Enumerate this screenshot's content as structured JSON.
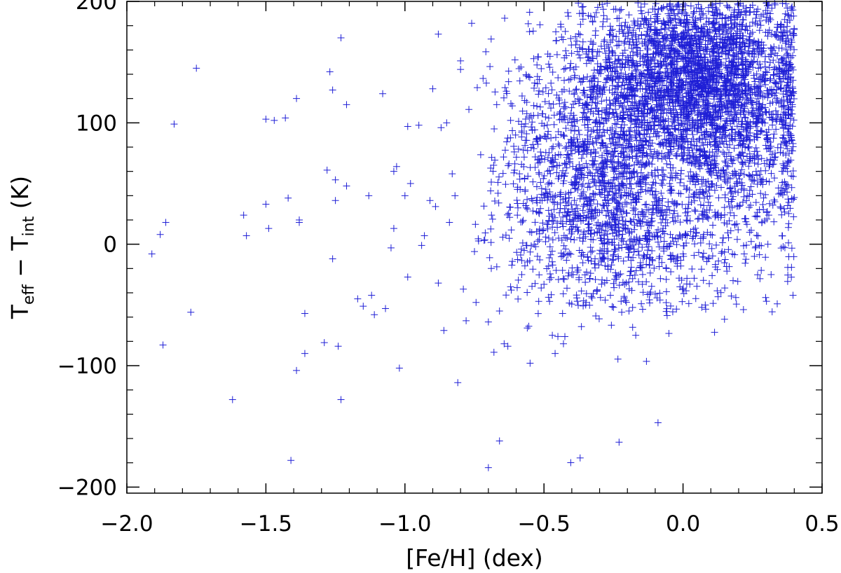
{
  "chart_data": {
    "type": "scatter",
    "xlabel": "[Fe/H] (dex)",
    "ylabel": {
      "prefix": "T",
      "sub1": "eff",
      "minus": " − T",
      "sub2": "int",
      "unit": " (K)"
    },
    "xlim": [
      -2.0,
      0.5
    ],
    "ylim": [
      -205,
      200
    ],
    "xticks": [
      {
        "value": -2.0,
        "label": "−2.0"
      },
      {
        "value": -1.5,
        "label": "−1.5"
      },
      {
        "value": -1.0,
        "label": "−1.0"
      },
      {
        "value": -0.5,
        "label": "−0.5"
      },
      {
        "value": 0.0,
        "label": "0.0"
      },
      {
        "value": 0.5,
        "label": "0.5"
      }
    ],
    "yticks": [
      {
        "value": -200,
        "label": "−200"
      },
      {
        "value": -100,
        "label": "−100"
      },
      {
        "value": 0,
        "label": "0"
      },
      {
        "value": 100,
        "label": "100"
      },
      {
        "value": 200,
        "label": "200"
      }
    ],
    "marker": "+",
    "color": "#1f1fd6",
    "grid": false,
    "legend": "none",
    "outliers": [
      [
        -1.91,
        -8
      ],
      [
        -1.88,
        8
      ],
      [
        -1.86,
        18
      ],
      [
        -1.87,
        -83
      ],
      [
        -1.83,
        99
      ],
      [
        -1.75,
        145
      ],
      [
        -1.77,
        -56
      ],
      [
        -1.62,
        -128
      ],
      [
        -1.58,
        24
      ],
      [
        -1.57,
        7
      ],
      [
        -1.5,
        33
      ],
      [
        -1.49,
        13
      ],
      [
        -1.5,
        103
      ],
      [
        -1.47,
        102
      ],
      [
        -1.43,
        104
      ],
      [
        -1.42,
        38
      ],
      [
        -1.39,
        120
      ],
      [
        -1.38,
        20
      ],
      [
        -1.38,
        18
      ],
      [
        -1.36,
        -57
      ],
      [
        -1.36,
        -90
      ],
      [
        -1.39,
        -104
      ],
      [
        -1.41,
        -178
      ],
      [
        -1.28,
        61
      ],
      [
        -1.27,
        142
      ],
      [
        -1.26,
        127
      ],
      [
        -1.25,
        53
      ],
      [
        -1.25,
        36
      ],
      [
        -1.23,
        170
      ],
      [
        -1.21,
        48
      ],
      [
        -1.21,
        115
      ],
      [
        -1.26,
        -12
      ],
      [
        -1.29,
        -81
      ],
      [
        -1.24,
        -84
      ],
      [
        -1.23,
        -128
      ],
      [
        -1.17,
        -45
      ],
      [
        -1.15,
        -51
      ],
      [
        -1.13,
        40
      ],
      [
        -1.12,
        -42
      ],
      [
        -1.11,
        -58
      ],
      [
        -1.08,
        124
      ],
      [
        -1.07,
        -53
      ],
      [
        -1.05,
        -3
      ],
      [
        -1.04,
        13
      ],
      [
        -1.04,
        60
      ],
      [
        -1.03,
        64
      ],
      [
        -1.02,
        200
      ],
      [
        -1.02,
        -102
      ],
      [
        -1.0,
        40
      ],
      [
        -0.99,
        97
      ],
      [
        -0.99,
        -27
      ],
      [
        -0.98,
        50
      ],
      [
        -0.95,
        98
      ],
      [
        -0.94,
        -1
      ],
      [
        -0.93,
        7
      ],
      [
        -0.91,
        36
      ],
      [
        -0.9,
        128
      ],
      [
        -0.89,
        31
      ],
      [
        -0.88,
        -32
      ],
      [
        -0.88,
        173
      ],
      [
        -0.87,
        96
      ],
      [
        -0.86,
        -71
      ],
      [
        -0.85,
        100
      ],
      [
        -0.84,
        18
      ],
      [
        -0.83,
        58
      ],
      [
        -0.82,
        40
      ],
      [
        -0.81,
        -114
      ],
      [
        -0.8,
        144
      ],
      [
        -0.8,
        151
      ],
      [
        -0.79,
        -37
      ],
      [
        -0.78,
        -63
      ],
      [
        -0.77,
        111
      ],
      [
        -0.76,
        182
      ],
      [
        -0.75,
        -6
      ],
      [
        -0.74,
        129
      ],
      [
        -0.7,
        -64
      ],
      [
        -0.7,
        -184
      ],
      [
        -0.69,
        169
      ],
      [
        -0.68,
        -89
      ],
      [
        -0.67,
        115
      ],
      [
        -0.66,
        -162
      ],
      [
        -0.66,
        -55
      ],
      [
        -0.64,
        129
      ],
      [
        -0.63,
        -84
      ],
      [
        -0.62,
        102
      ],
      [
        -0.62,
        -35
      ],
      [
        -0.58,
        -25
      ],
      [
        -0.56,
        -69
      ],
      [
        -0.55,
        -98
      ],
      [
        -0.53,
        -2
      ],
      [
        -0.51,
        -36
      ],
      [
        -0.5,
        -33
      ],
      [
        -0.47,
        -75
      ],
      [
        -0.46,
        -90
      ],
      [
        -0.45,
        -76
      ],
      [
        -0.43,
        -82
      ],
      [
        -0.4,
        -25
      ],
      [
        -0.38,
        -47
      ],
      [
        -0.37,
        -176
      ],
      [
        -0.35,
        -50
      ],
      [
        -0.33,
        -43
      ],
      [
        -0.28,
        -46
      ],
      [
        -0.25,
        -52
      ],
      [
        -0.23,
        -163
      ],
      [
        -0.21,
        -33
      ],
      [
        -0.17,
        -75
      ],
      [
        -0.15,
        -49
      ],
      [
        -0.12,
        -41
      ],
      [
        -0.1,
        -41
      ],
      [
        -0.09,
        -147
      ],
      [
        -0.06,
        -20
      ],
      [
        0.04,
        -28
      ],
      [
        0.08,
        -50
      ],
      [
        0.09,
        -12
      ],
      [
        0.15,
        -36
      ],
      [
        0.18,
        -30
      ],
      [
        0.22,
        -8
      ],
      [
        0.3,
        -47
      ],
      [
        0.33,
        35
      ],
      [
        0.36,
        -2
      ],
      [
        0.38,
        17
      ],
      [
        0.39,
        -19
      ],
      [
        0.39,
        77
      ],
      [
        0.3,
        52
      ],
      [
        0.26,
        -3
      ]
    ],
    "clusters": [
      {
        "cx": 0.02,
        "cy": 140,
        "sx": 0.19,
        "sy": 40,
        "n": 2600
      },
      {
        "cx": -0.3,
        "cy": 60,
        "sx": 0.18,
        "sy": 50,
        "n": 1400
      },
      {
        "cx": -0.15,
        "cy": 5,
        "sx": 0.25,
        "sy": 30,
        "n": 450
      },
      {
        "cx": 0.2,
        "cy": 100,
        "sx": 0.15,
        "sy": 55,
        "n": 800
      }
    ]
  }
}
